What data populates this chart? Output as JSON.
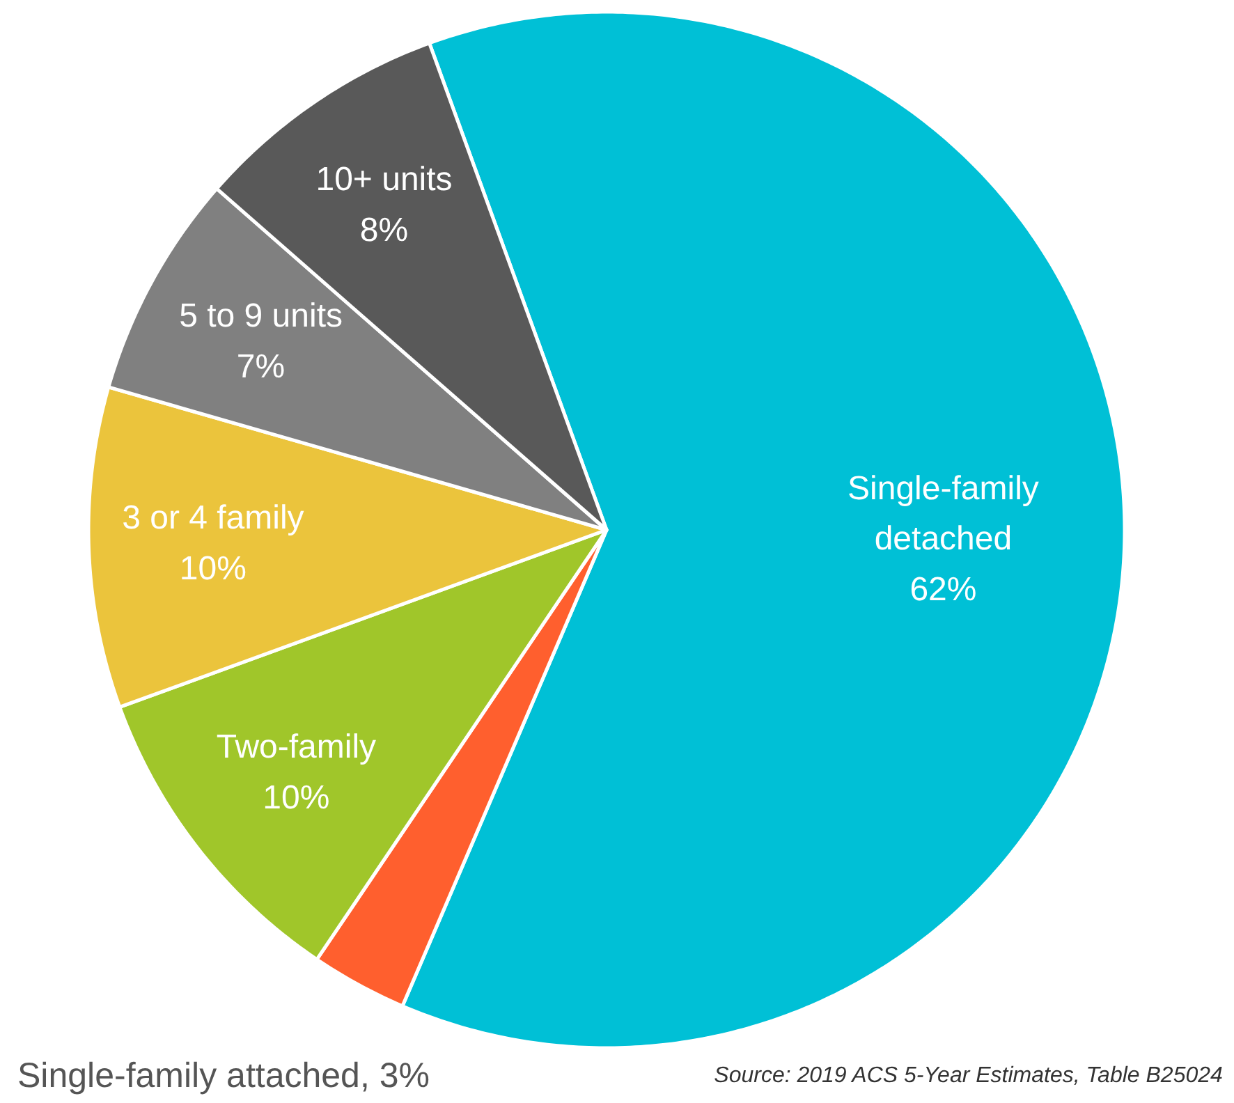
{
  "chart_data": {
    "type": "pie",
    "categories": [
      "Single-family detached",
      "Single-family attached",
      "Two-family",
      "3 or 4 family",
      "5 to 9 units",
      "10+ units"
    ],
    "values": [
      62,
      3,
      10,
      10,
      7,
      8
    ],
    "value_labels": [
      "62%",
      ", 3%",
      "10%",
      "10%",
      "7%",
      "8%"
    ],
    "colors": [
      "#00c0d6",
      "#ff5f2e",
      "#a0c62a",
      "#ebc43c",
      "#808080",
      "#595959"
    ],
    "annotations": [
      "Source: 2019 ACS 5-Year Estimates, Table B25024"
    ]
  }
}
